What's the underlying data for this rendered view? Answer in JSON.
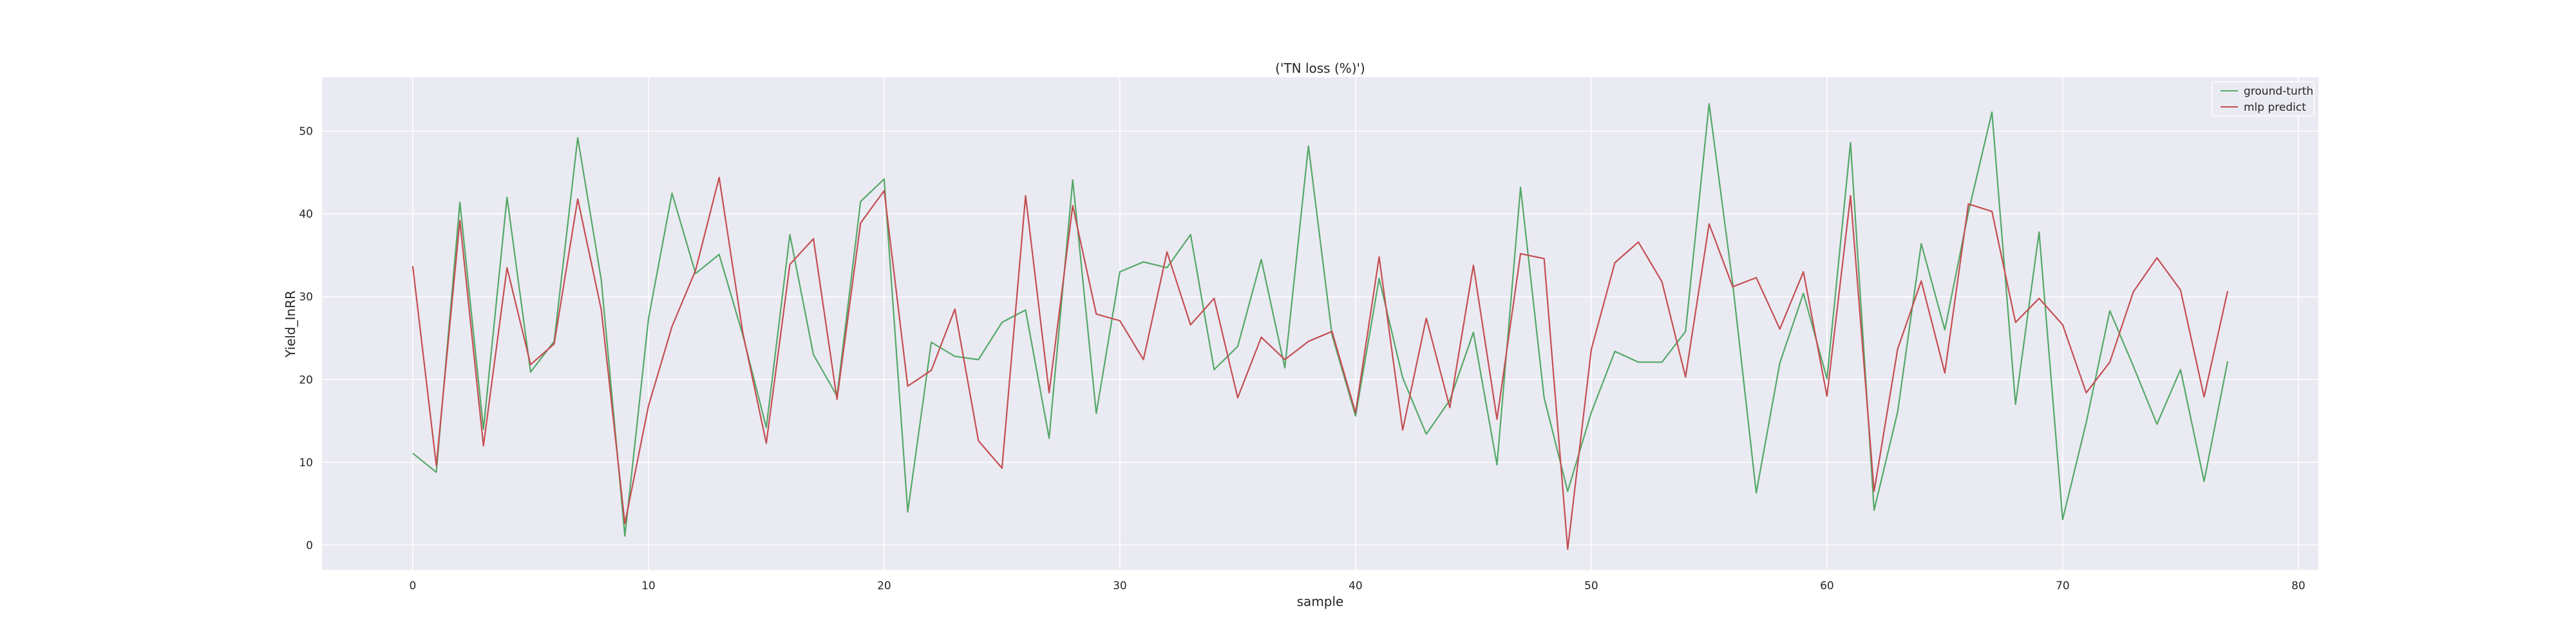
{
  "chart_data": {
    "type": "line",
    "title": "('TN loss (%)')",
    "xlabel": "sample",
    "ylabel": "Yield_InRR",
    "xlim": [
      -3.85,
      80.85
    ],
    "ylim": [
      -3,
      56.5
    ],
    "xticks": [
      0,
      10,
      20,
      30,
      40,
      50,
      60,
      70,
      80
    ],
    "yticks": [
      0,
      10,
      20,
      30,
      40,
      50
    ],
    "grid": true,
    "legend_position": "top-right",
    "colors": {
      "background": "#eaeaf2",
      "grid": "#ffffff"
    },
    "series": [
      {
        "name": "ground-turth",
        "color": "#55a868",
        "x": [
          0,
          1,
          2,
          3,
          4,
          5,
          6,
          7,
          8,
          9,
          10,
          11,
          12,
          13,
          14,
          15,
          16,
          17,
          18,
          19,
          20,
          21,
          22,
          23,
          24,
          25,
          26,
          27,
          28,
          29,
          30,
          31,
          32,
          33,
          34,
          35,
          36,
          37,
          38,
          39,
          40,
          41,
          42,
          43,
          44,
          45,
          46,
          47,
          48,
          49,
          50,
          51,
          52,
          53,
          54,
          55,
          56,
          57,
          58,
          59,
          60,
          61,
          62,
          63,
          64,
          65,
          66,
          67,
          68,
          69,
          70,
          71,
          72,
          73,
          74,
          75,
          76,
          77
        ],
        "values": [
          11.1,
          8.8,
          41.4,
          14.0,
          42.0,
          20.9,
          24.6,
          49.2,
          32.0,
          1.1,
          27.3,
          42.5,
          32.8,
          35.1,
          25.4,
          14.2,
          37.5,
          23.0,
          18.0,
          41.5,
          44.2,
          4.0,
          24.5,
          22.8,
          22.4,
          26.9,
          28.4,
          12.9,
          44.1,
          15.9,
          33.0,
          34.2,
          33.5,
          37.5,
          21.2,
          24.0,
          34.5,
          21.4,
          48.2,
          25.4,
          15.6,
          32.2,
          20.2,
          13.4,
          17.5,
          25.7,
          9.7,
          43.2,
          17.8,
          6.5,
          16.0,
          23.4,
          22.1,
          22.1,
          25.8,
          53.3,
          31.6,
          6.3,
          22.0,
          30.4,
          20.1,
          48.6,
          4.2,
          16.1,
          36.4,
          26.0,
          40.2,
          52.3,
          17.0,
          37.8,
          3.1,
          14.8,
          28.3,
          21.6,
          14.6,
          21.2,
          7.7,
          22.2
        ]
      },
      {
        "name": "mlp predict",
        "color": "#c44e52",
        "x": [
          0,
          1,
          2,
          3,
          4,
          5,
          6,
          7,
          8,
          9,
          10,
          11,
          12,
          13,
          14,
          15,
          16,
          17,
          18,
          19,
          20,
          21,
          22,
          23,
          24,
          25,
          26,
          27,
          28,
          29,
          30,
          31,
          32,
          33,
          34,
          35,
          36,
          37,
          38,
          39,
          40,
          41,
          42,
          43,
          44,
          45,
          46,
          47,
          48,
          49,
          50,
          51,
          52,
          53,
          54,
          55,
          56,
          57,
          58,
          59,
          60,
          61,
          62,
          63,
          64,
          65,
          66,
          67,
          68,
          69,
          70,
          71,
          72,
          73,
          74,
          75,
          76,
          77
        ],
        "values": [
          33.7,
          9.6,
          39.2,
          12.0,
          33.5,
          21.8,
          24.3,
          41.8,
          28.4,
          2.6,
          16.8,
          26.4,
          33.2,
          44.4,
          25.7,
          12.3,
          33.9,
          37.0,
          17.6,
          38.9,
          42.8,
          19.2,
          21.1,
          28.5,
          12.6,
          9.3,
          42.2,
          18.4,
          41.0,
          27.9,
          27.1,
          22.4,
          35.4,
          26.6,
          29.8,
          17.8,
          25.1,
          22.4,
          24.6,
          25.8,
          16.0,
          34.8,
          13.9,
          27.4,
          16.6,
          33.8,
          15.2,
          35.2,
          34.6,
          -0.5,
          23.6,
          34.1,
          36.6,
          31.8,
          20.3,
          38.8,
          31.2,
          32.3,
          26.1,
          33.0,
          18.0,
          42.2,
          6.5,
          23.7,
          31.9,
          20.8,
          41.2,
          40.3,
          26.9,
          29.8,
          26.6,
          18.4,
          22.1,
          30.6,
          34.7,
          30.8,
          17.9,
          30.7
        ]
      }
    ]
  }
}
